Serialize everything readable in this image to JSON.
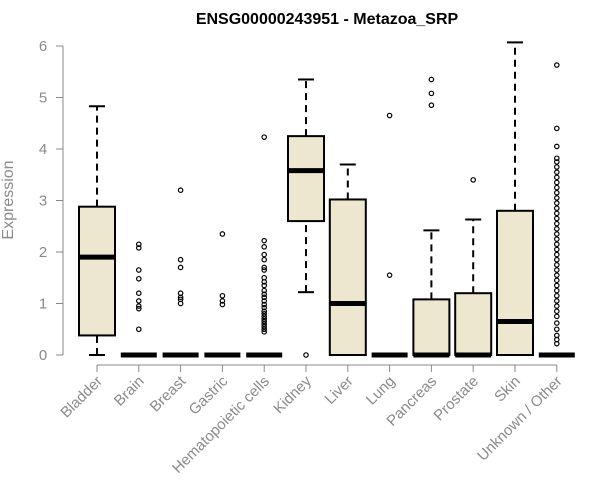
{
  "chart_data": {
    "type": "box",
    "title": "ENSG00000243951 - Metazoa_SRP",
    "xlabel": "",
    "ylabel": "Expression",
    "ylim": [
      0,
      6
    ],
    "yticks": [
      "0",
      "1",
      "2",
      "3",
      "4",
      "5",
      "6"
    ],
    "grid": false,
    "box_fill": "#ede7d0",
    "categories": [
      "Bladder",
      "Brain",
      "Breast",
      "Gastric",
      "Hematopoietic cells",
      "Kidney",
      "Liver",
      "Lung",
      "Pancreas",
      "Prostate",
      "Skin",
      "Unknown / Other"
    ],
    "boxes": [
      {
        "category": "Bladder",
        "whisker_low": 0.0,
        "q1": 0.38,
        "median": 1.9,
        "q3": 2.88,
        "whisker_high": 4.83,
        "outliers": []
      },
      {
        "category": "Brain",
        "whisker_low": 0.0,
        "q1": 0.0,
        "median": 0.0,
        "q3": 0.0,
        "whisker_high": 0.0,
        "outliers": [
          2.15,
          2.08,
          1.65,
          1.48,
          1.2,
          1.05,
          0.95,
          0.9,
          0.5
        ]
      },
      {
        "category": "Breast",
        "whisker_low": 0.0,
        "q1": 0.0,
        "median": 0.0,
        "q3": 0.0,
        "whisker_high": 0.0,
        "outliers": [
          3.2,
          1.85,
          1.7,
          1.2,
          1.12,
          1.08,
          1.0
        ]
      },
      {
        "category": "Gastric",
        "whisker_low": 0.0,
        "q1": 0.0,
        "median": 0.0,
        "q3": 0.0,
        "whisker_high": 0.0,
        "outliers": [
          2.35,
          1.15,
          1.05,
          0.98
        ]
      },
      {
        "category": "Hematopoietic cells",
        "whisker_low": 0.0,
        "q1": 0.0,
        "median": 0.0,
        "q3": 0.0,
        "whisker_high": 0.0,
        "outliers": [
          4.23,
          2.22,
          2.1,
          1.95,
          1.85,
          1.7,
          1.65,
          1.5,
          1.42,
          1.35,
          1.25,
          1.18,
          1.12,
          1.05,
          0.98,
          0.92,
          0.85,
          0.8,
          0.75,
          0.7,
          0.65,
          0.6,
          0.55,
          0.5,
          0.45
        ]
      },
      {
        "category": "Kidney",
        "whisker_low": 1.22,
        "q1": 2.6,
        "median": 3.58,
        "q3": 4.25,
        "whisker_high": 5.35,
        "outliers": [
          0.0
        ]
      },
      {
        "category": "Liver",
        "whisker_low": 0.0,
        "q1": 0.0,
        "median": 1.0,
        "q3": 3.02,
        "whisker_high": 3.7,
        "outliers": []
      },
      {
        "category": "Lung",
        "whisker_low": 0.0,
        "q1": 0.0,
        "median": 0.0,
        "q3": 0.0,
        "whisker_high": 0.0,
        "outliers": [
          4.65,
          1.55
        ]
      },
      {
        "category": "Pancreas",
        "whisker_low": 0.0,
        "q1": 0.0,
        "median": 0.0,
        "q3": 1.08,
        "whisker_high": 2.42,
        "outliers": [
          5.35,
          5.08,
          4.85
        ]
      },
      {
        "category": "Prostate",
        "whisker_low": 0.0,
        "q1": 0.0,
        "median": 0.0,
        "q3": 1.2,
        "whisker_high": 2.63,
        "outliers": [
          3.4
        ]
      },
      {
        "category": "Skin",
        "whisker_low": 0.0,
        "q1": 0.0,
        "median": 0.65,
        "q3": 2.8,
        "whisker_high": 6.07,
        "outliers": []
      },
      {
        "category": "Unknown / Other",
        "whisker_low": 0.0,
        "q1": 0.0,
        "median": 0.0,
        "q3": 0.0,
        "whisker_high": 0.0,
        "outliers": [
          5.63,
          4.4,
          4.05,
          3.82,
          3.75,
          3.65,
          3.55,
          3.45,
          3.35,
          3.25,
          3.15,
          3.05,
          2.95,
          2.85,
          2.75,
          2.65,
          2.55,
          2.45,
          2.35,
          2.25,
          2.15,
          2.05,
          1.95,
          1.85,
          1.75,
          1.65,
          1.55,
          1.45,
          1.35,
          1.25,
          1.15,
          1.05,
          0.95,
          0.85,
          0.75,
          0.62,
          0.5,
          0.38,
          0.3,
          0.22
        ]
      }
    ]
  }
}
